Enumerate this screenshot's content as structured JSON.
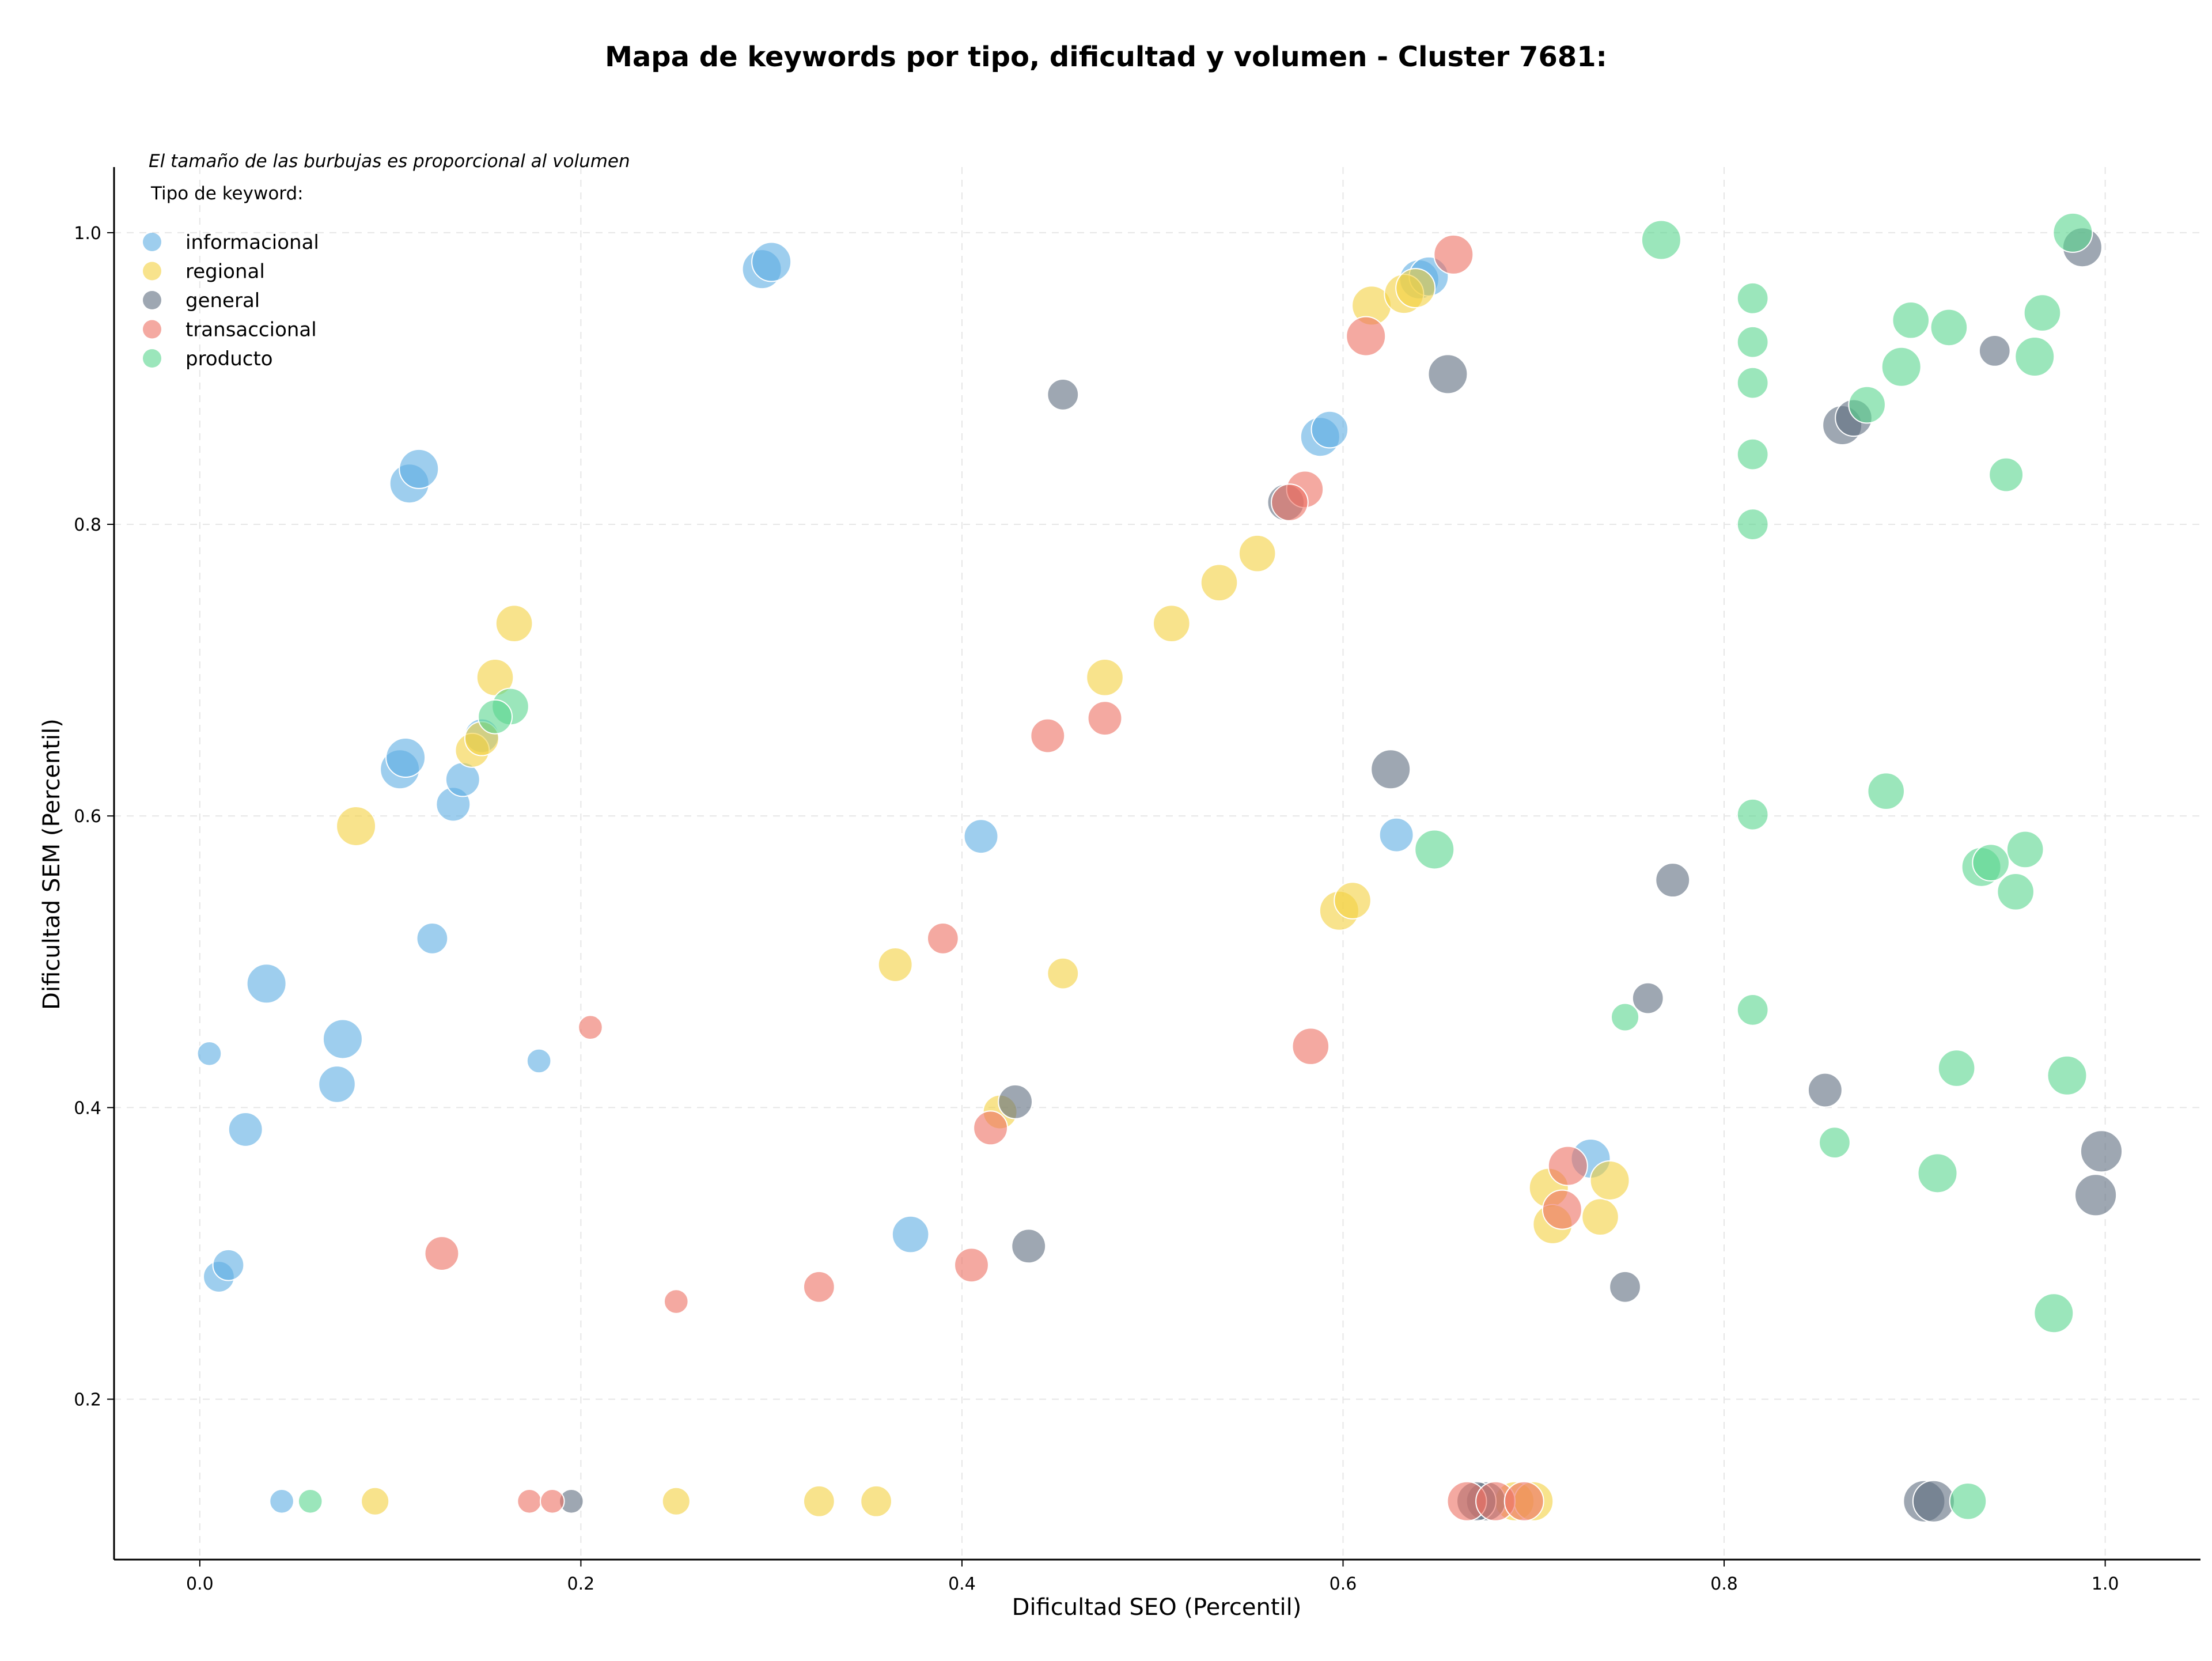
{
  "chart_data": {
    "type": "scatter",
    "title": "Mapa de keywords por tipo, dificultad y volumen - Cluster 7681:",
    "xlabel": "Dificultad SEO (Percentil)",
    "ylabel": "Dificultad SEM (Percentil)",
    "xlim": [
      -0.045,
      1.05
    ],
    "ylim": [
      0.09,
      1.045
    ],
    "x_ticks": [
      "0.0",
      "0.2",
      "0.4",
      "0.6",
      "0.8",
      "1.0"
    ],
    "y_ticks": [
      "0.2",
      "0.4",
      "0.6",
      "0.8",
      "1.0"
    ],
    "grid": true,
    "size_note": "El tamaño de las burbujas es proporcional al volumen",
    "legend": {
      "title": "Tipo de keyword:",
      "placement": "top-left",
      "entries": [
        {
          "label": "informacional",
          "color": "#5DADE2"
        },
        {
          "label": "regional",
          "color": "#F4D03F"
        },
        {
          "label": "general",
          "color": "#5D6D7E"
        },
        {
          "label": "transaccional",
          "color": "#EC7063"
        },
        {
          "label": "producto",
          "color": "#58D68D"
        }
      ]
    },
    "series": [
      {
        "name": "informacional",
        "color": "#5DADE2",
        "points": [
          [
            0.295,
            0.975,
            4
          ],
          [
            0.3,
            0.98,
            4
          ],
          [
            0.11,
            0.828,
            4
          ],
          [
            0.115,
            0.838,
            4
          ],
          [
            0.105,
            0.632,
            4
          ],
          [
            0.108,
            0.64,
            4
          ],
          [
            0.133,
            0.608,
            3
          ],
          [
            0.138,
            0.625,
            3
          ],
          [
            0.148,
            0.655,
            3
          ],
          [
            0.035,
            0.485,
            4
          ],
          [
            0.075,
            0.447,
            4
          ],
          [
            0.072,
            0.416,
            3.5
          ],
          [
            0.024,
            0.385,
            3
          ],
          [
            0.122,
            0.516,
            2.5
          ],
          [
            0.005,
            0.437,
            1.5
          ],
          [
            0.178,
            0.432,
            1.5
          ],
          [
            0.01,
            0.284,
            2.5
          ],
          [
            0.015,
            0.292,
            2.5
          ],
          [
            0.41,
            0.586,
            3
          ],
          [
            0.373,
            0.313,
            3.5
          ],
          [
            0.588,
            0.86,
            4
          ],
          [
            0.593,
            0.865,
            3.5
          ],
          [
            0.628,
            0.587,
            3
          ],
          [
            0.64,
            0.968,
            4
          ],
          [
            0.645,
            0.97,
            4
          ],
          [
            0.73,
            0.365,
            4
          ],
          [
            0.043,
            0.13,
            1.5
          ]
        ]
      },
      {
        "name": "regional",
        "color": "#F4D03F",
        "points": [
          [
            0.082,
            0.593,
            4
          ],
          [
            0.165,
            0.732,
            3.5
          ],
          [
            0.155,
            0.695,
            3.5
          ],
          [
            0.143,
            0.645,
            3
          ],
          [
            0.148,
            0.653,
            3
          ],
          [
            0.365,
            0.498,
            3
          ],
          [
            0.453,
            0.492,
            2.5
          ],
          [
            0.42,
            0.397,
            3
          ],
          [
            0.475,
            0.695,
            3.5
          ],
          [
            0.51,
            0.732,
            3.5
          ],
          [
            0.535,
            0.76,
            3.5
          ],
          [
            0.555,
            0.78,
            3.5
          ],
          [
            0.598,
            0.535,
            4
          ],
          [
            0.605,
            0.542,
            3.5
          ],
          [
            0.615,
            0.95,
            4
          ],
          [
            0.632,
            0.958,
            4
          ],
          [
            0.638,
            0.962,
            4
          ],
          [
            0.708,
            0.345,
            4
          ],
          [
            0.71,
            0.32,
            4
          ],
          [
            0.735,
            0.325,
            3.5
          ],
          [
            0.74,
            0.35,
            4
          ],
          [
            0.092,
            0.13,
            2
          ],
          [
            0.25,
            0.13,
            2
          ],
          [
            0.325,
            0.13,
            2.5
          ],
          [
            0.355,
            0.13,
            2.5
          ],
          [
            0.69,
            0.13,
            4
          ],
          [
            0.7,
            0.13,
            4
          ]
        ]
      },
      {
        "name": "general",
        "color": "#5D6D7E",
        "points": [
          [
            0.453,
            0.889,
            2.5
          ],
          [
            0.655,
            0.903,
            4
          ],
          [
            0.625,
            0.632,
            4
          ],
          [
            0.773,
            0.556,
            3
          ],
          [
            0.76,
            0.475,
            2.5
          ],
          [
            0.435,
            0.305,
            3
          ],
          [
            0.428,
            0.404,
            3
          ],
          [
            0.57,
            0.815,
            3.5
          ],
          [
            0.748,
            0.277,
            2.5
          ],
          [
            0.853,
            0.412,
            3
          ],
          [
            0.862,
            0.868,
            4
          ],
          [
            0.868,
            0.873,
            3.5
          ],
          [
            0.942,
            0.919,
            2.5
          ],
          [
            0.988,
            0.99,
            4
          ],
          [
            0.998,
            0.37,
            4.5
          ],
          [
            0.995,
            0.34,
            4.5
          ],
          [
            0.195,
            0.13,
            1.5
          ],
          [
            0.675,
            0.13,
            4
          ],
          [
            0.67,
            0.13,
            4
          ],
          [
            0.905,
            0.13,
            4.5
          ],
          [
            0.91,
            0.13,
            4.5
          ]
        ]
      },
      {
        "name": "transaccional",
        "color": "#EC7063",
        "points": [
          [
            0.612,
            0.929,
            4
          ],
          [
            0.658,
            0.985,
            4
          ],
          [
            0.58,
            0.824,
            3.5
          ],
          [
            0.572,
            0.815,
            3.5
          ],
          [
            0.475,
            0.667,
            3
          ],
          [
            0.445,
            0.655,
            3
          ],
          [
            0.39,
            0.516,
            2.5
          ],
          [
            0.205,
            0.455,
            1.5
          ],
          [
            0.583,
            0.442,
            3.5
          ],
          [
            0.415,
            0.386,
            3
          ],
          [
            0.405,
            0.292,
            3
          ],
          [
            0.325,
            0.277,
            2.5
          ],
          [
            0.127,
            0.3,
            3
          ],
          [
            0.25,
            0.267,
            1.5
          ],
          [
            0.718,
            0.36,
            4
          ],
          [
            0.715,
            0.33,
            4
          ],
          [
            0.173,
            0.13,
            1.5
          ],
          [
            0.185,
            0.13,
            1.5
          ],
          [
            0.665,
            0.13,
            4
          ],
          [
            0.68,
            0.13,
            4
          ],
          [
            0.695,
            0.13,
            4
          ]
        ]
      },
      {
        "name": "producto",
        "color": "#58D68D",
        "points": [
          [
            0.767,
            0.995,
            4
          ],
          [
            0.983,
            1.0,
            4
          ],
          [
            0.815,
            0.955,
            2.5
          ],
          [
            0.815,
            0.925,
            2.5
          ],
          [
            0.815,
            0.897,
            2.5
          ],
          [
            0.815,
            0.848,
            2.5
          ],
          [
            0.815,
            0.8,
            2.5
          ],
          [
            0.898,
            0.94,
            3.5
          ],
          [
            0.893,
            0.908,
            4
          ],
          [
            0.918,
            0.935,
            3.5
          ],
          [
            0.967,
            0.945,
            3.5
          ],
          [
            0.963,
            0.915,
            4
          ],
          [
            0.875,
            0.882,
            3.5
          ],
          [
            0.948,
            0.834,
            3
          ],
          [
            0.163,
            0.675,
            3.5
          ],
          [
            0.155,
            0.668,
            3
          ],
          [
            0.648,
            0.577,
            4
          ],
          [
            0.815,
            0.601,
            2.5
          ],
          [
            0.885,
            0.617,
            3.5
          ],
          [
            0.935,
            0.565,
            4
          ],
          [
            0.94,
            0.568,
            3.5
          ],
          [
            0.958,
            0.577,
            3.5
          ],
          [
            0.953,
            0.548,
            3.5
          ],
          [
            0.815,
            0.467,
            2.5
          ],
          [
            0.748,
            0.462,
            2
          ],
          [
            0.922,
            0.427,
            3.5
          ],
          [
            0.98,
            0.422,
            4
          ],
          [
            0.858,
            0.376,
            2.5
          ],
          [
            0.912,
            0.355,
            4
          ],
          [
            0.973,
            0.259,
            4
          ],
          [
            0.058,
            0.13,
            1.5
          ],
          [
            0.928,
            0.13,
            3.5
          ]
        ]
      }
    ]
  }
}
